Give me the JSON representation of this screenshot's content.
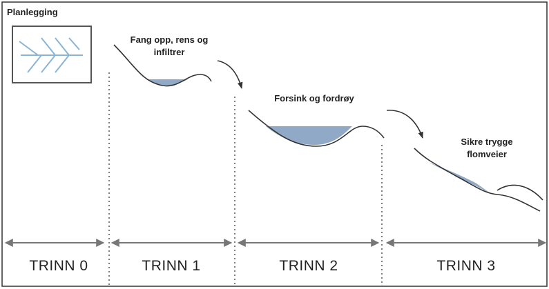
{
  "title": "Planlegging",
  "annotations": [
    {
      "lines": [
        "Fang opp, rens og",
        "infiltrer"
      ]
    },
    {
      "lines": [
        "Forsink og fordrøy"
      ]
    },
    {
      "lines": [
        "Sikre trygge",
        "flomveier"
      ]
    }
  ],
  "stages": [
    "TRINN 0",
    "TRINN 1",
    "TRINN 2",
    "TRINN 3"
  ]
}
